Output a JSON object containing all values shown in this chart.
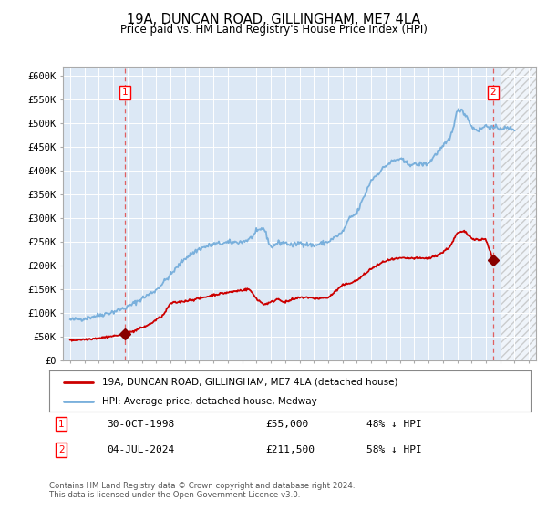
{
  "title": "19A, DUNCAN ROAD, GILLINGHAM, ME7 4LA",
  "subtitle": "Price paid vs. HM Land Registry's House Price Index (HPI)",
  "ylim": [
    0,
    620000
  ],
  "yticks": [
    0,
    50000,
    100000,
    150000,
    200000,
    250000,
    300000,
    350000,
    400000,
    450000,
    500000,
    550000,
    600000
  ],
  "ytick_labels": [
    "£0",
    "£50K",
    "£100K",
    "£150K",
    "£200K",
    "£250K",
    "£300K",
    "£350K",
    "£400K",
    "£450K",
    "£500K",
    "£550K",
    "£600K"
  ],
  "hpi_color": "#7ab0dc",
  "price_color": "#cc0000",
  "bg_color": "#dce8f5",
  "grid_color": "#ffffff",
  "marker_color": "#880000",
  "sale1_date": 1998.83,
  "sale1_price": 55000,
  "sale2_date": 2024.5,
  "sale2_price": 211500,
  "vline_color": "#e06060",
  "legend_label1": "19A, DUNCAN ROAD, GILLINGHAM, ME7 4LA (detached house)",
  "legend_label2": "HPI: Average price, detached house, Medway",
  "note1_num": "1",
  "note1_date": "30-OCT-1998",
  "note1_price": "£55,000",
  "note1_hpi": "48% ↓ HPI",
  "note2_num": "2",
  "note2_date": "04-JUL-2024",
  "note2_price": "£211,500",
  "note2_hpi": "58% ↓ HPI",
  "footer": "Contains HM Land Registry data © Crown copyright and database right 2024.\nThis data is licensed under the Open Government Licence v3.0.",
  "xlim_start": 1994.5,
  "xlim_end": 2027.5,
  "xtick_years": [
    1995,
    1996,
    1997,
    1998,
    1999,
    2000,
    2001,
    2002,
    2003,
    2004,
    2005,
    2006,
    2007,
    2008,
    2009,
    2010,
    2011,
    2012,
    2013,
    2014,
    2015,
    2016,
    2017,
    2018,
    2019,
    2020,
    2021,
    2022,
    2023,
    2024,
    2025,
    2026,
    2027
  ],
  "shade_start": 2025.0,
  "hpi_anchors_x": [
    1995.0,
    1996.0,
    1997.0,
    1998.0,
    1999.0,
    2000.0,
    2001.0,
    2002.0,
    2003.0,
    2004.0,
    2005.0,
    2006.0,
    2007.0,
    2007.5,
    2008.0,
    2008.5,
    2009.0,
    2009.5,
    2010.0,
    2010.5,
    2011.0,
    2012.0,
    2013.0,
    2014.0,
    2014.5,
    2015.0,
    2016.0,
    2017.0,
    2017.5,
    2018.0,
    2018.5,
    2019.0,
    2020.0,
    2020.5,
    2021.0,
    2021.5,
    2022.0,
    2022.3,
    2022.8,
    2023.0,
    2023.5,
    2024.0,
    2024.5,
    2025.0,
    2026.0
  ],
  "hpi_anchors_y": [
    85000,
    88000,
    95000,
    102000,
    112000,
    130000,
    148000,
    180000,
    215000,
    235000,
    245000,
    248000,
    250000,
    255000,
    270000,
    280000,
    238000,
    248000,
    248000,
    242000,
    248000,
    242000,
    250000,
    270000,
    300000,
    310000,
    380000,
    410000,
    420000,
    425000,
    415000,
    413000,
    415000,
    435000,
    450000,
    468000,
    525000,
    530000,
    508000,
    492000,
    485000,
    495000,
    490000,
    490000,
    488000
  ],
  "price_anchors_x": [
    1995.0,
    1996.0,
    1997.0,
    1998.0,
    1998.83,
    1999.5,
    2000.5,
    2001.5,
    2002.0,
    2003.0,
    2004.0,
    2005.0,
    2006.0,
    2007.0,
    2007.5,
    2008.0,
    2008.5,
    2009.0,
    2009.5,
    2010.0,
    2010.5,
    2011.0,
    2011.5,
    2012.0,
    2013.0,
    2014.0,
    2015.0,
    2016.0,
    2017.0,
    2018.0,
    2019.0,
    2020.0,
    2020.5,
    2021.0,
    2021.5,
    2022.0,
    2022.5,
    2023.0,
    2023.5,
    2024.0,
    2024.5
  ],
  "price_anchors_y": [
    42000,
    44000,
    47000,
    51000,
    55000,
    62000,
    75000,
    95000,
    120000,
    125000,
    130000,
    138000,
    143000,
    148000,
    150000,
    130000,
    118000,
    122000,
    130000,
    122000,
    128000,
    132000,
    133000,
    130000,
    132000,
    158000,
    168000,
    193000,
    210000,
    215000,
    215000,
    215000,
    220000,
    228000,
    240000,
    268000,
    272000,
    258000,
    254000,
    256000,
    211500
  ]
}
